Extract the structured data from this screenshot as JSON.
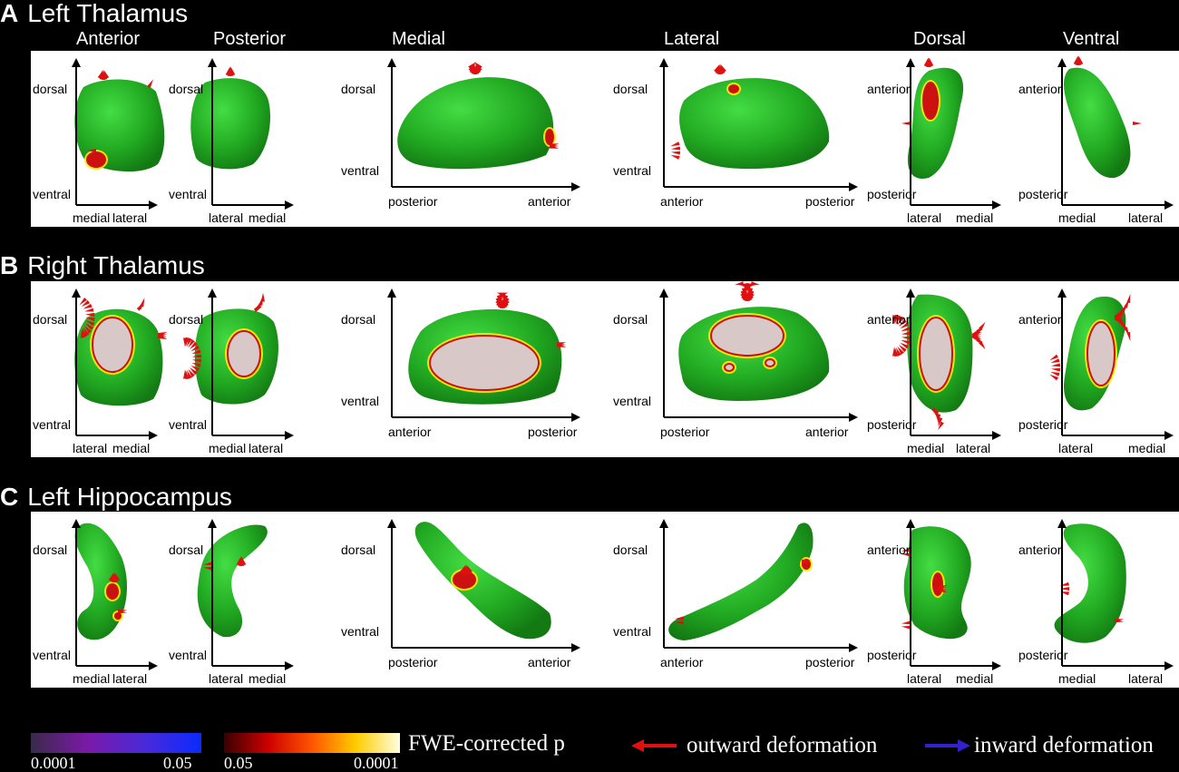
{
  "rows": [
    {
      "letter": "A",
      "title": "Left Thalamus"
    },
    {
      "letter": "B",
      "title": "Right Thalamus"
    },
    {
      "letter": "C",
      "title": "Left Hippocampus"
    }
  ],
  "view_labels": [
    "Anterior",
    "Posterior",
    "Medial",
    "Lateral",
    "Dorsal",
    "Ventral"
  ],
  "axes": {
    "A": [
      {
        "v_top": "dorsal",
        "v_bottom": "ventral",
        "h_left": "medial",
        "h_right": "lateral"
      },
      {
        "v_top": "dorsal",
        "v_bottom": "ventral",
        "h_left": "lateral",
        "h_right": "medial"
      },
      {
        "v_top": "dorsal",
        "v_bottom": "ventral",
        "h_left": "posterior",
        "h_right": "anterior"
      },
      {
        "v_top": "dorsal",
        "v_bottom": "ventral",
        "h_left": "anterior",
        "h_right": "posterior"
      },
      {
        "v_top": "anterior",
        "v_bottom": "posterior",
        "h_left": "lateral",
        "h_right": "medial"
      },
      {
        "v_top": "anterior",
        "v_bottom": "posterior",
        "h_left": "medial",
        "h_right": "lateral"
      }
    ],
    "B": [
      {
        "v_top": "dorsal",
        "v_bottom": "ventral",
        "h_left": "lateral",
        "h_right": "medial"
      },
      {
        "v_top": "dorsal",
        "v_bottom": "ventral",
        "h_left": "medial",
        "h_right": "lateral"
      },
      {
        "v_top": "dorsal",
        "v_bottom": "ventral",
        "h_left": "anterior",
        "h_right": "posterior"
      },
      {
        "v_top": "dorsal",
        "v_bottom": "ventral",
        "h_left": "posterior",
        "h_right": "anterior"
      },
      {
        "v_top": "anterior",
        "v_bottom": "posterior",
        "h_left": "medial",
        "h_right": "lateral"
      },
      {
        "v_top": "anterior",
        "v_bottom": "posterior",
        "h_left": "lateral",
        "h_right": "medial"
      }
    ],
    "C": [
      {
        "v_top": "dorsal",
        "v_bottom": "ventral",
        "h_left": "medial",
        "h_right": "lateral"
      },
      {
        "v_top": "dorsal",
        "v_bottom": "ventral",
        "h_left": "lateral",
        "h_right": "medial"
      },
      {
        "v_top": "dorsal",
        "v_bottom": "ventral",
        "h_left": "posterior",
        "h_right": "anterior"
      },
      {
        "v_top": "dorsal",
        "v_bottom": "ventral",
        "h_left": "anterior",
        "h_right": "posterior"
      },
      {
        "v_top": "anterior",
        "v_bottom": "posterior",
        "h_left": "lateral",
        "h_right": "medial"
      },
      {
        "v_top": "anterior",
        "v_bottom": "posterior",
        "h_left": "medial",
        "h_right": "lateral"
      }
    ]
  },
  "legend": {
    "cbar_inward": {
      "min": "0.0001",
      "max": "0.05"
    },
    "cbar_outward": {
      "min": "0.05",
      "max": "0.0001"
    },
    "pvalue_label": "FWE-corrected p",
    "outward_label": "outward deformation",
    "inward_label": "inward deformation"
  },
  "colors": {
    "structure": "#22aa22",
    "outward_arrow": "#e01010",
    "inward_arrow": "#3322cc",
    "background": "#000000",
    "panel": "#ffffff"
  }
}
